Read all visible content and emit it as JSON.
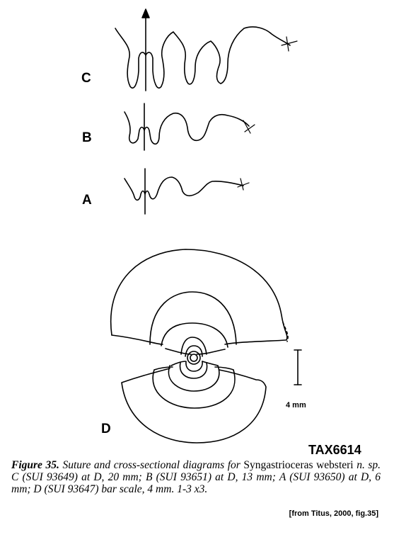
{
  "labels": {
    "c": "C",
    "b": "B",
    "a": "A",
    "d": "D"
  },
  "scale_label": "4 mm",
  "specimen_code": "TAX6614",
  "caption": {
    "figure_number": "Figure 35.",
    "text_1": "Suture and cross-sectional diagrams for",
    "genus": "Syngastrioceras",
    "species": "websteri",
    "text_2": "n. sp. C (SUI 93649) at D, 20 mm; B (SUI 93651) at D, 13 mm; A (SUI 93650) at D, 6 mm; D (SUI 93647) bar scale, 4 mm. 1-3 x3."
  },
  "credit": "[from Titus, 2000, fig.35]"
}
